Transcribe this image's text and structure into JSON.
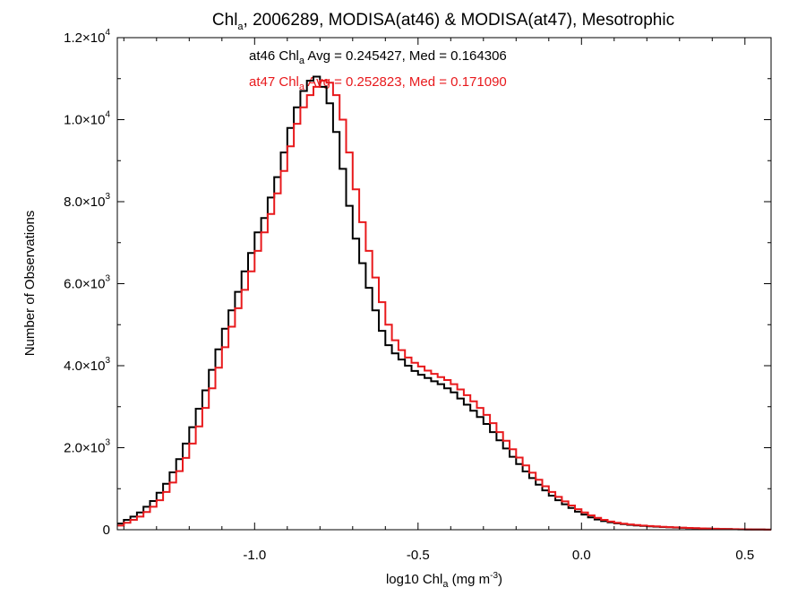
{
  "chart_data": {
    "type": "histogram-step",
    "title": {
      "prefix": "Chl",
      "sub": "a",
      "suffix": ", 2006289, MODISA(at46) & MODISA(at47), Mesotrophic"
    },
    "xlabel": {
      "prefix": "log10 Chl",
      "sub": "a",
      "middle": " (mg m",
      "sup": "-3",
      "suffix": ")"
    },
    "ylabel": "Number of Observations",
    "xlim": [
      -1.42,
      0.58
    ],
    "ylim": [
      0,
      12000
    ],
    "x_ticks": [
      {
        "value": -1.0,
        "label": "-1.0"
      },
      {
        "value": -0.5,
        "label": "-0.5"
      },
      {
        "value": 0.0,
        "label": "0.0"
      },
      {
        "value": 0.5,
        "label": "0.5"
      }
    ],
    "y_ticks": [
      {
        "value": 0,
        "mant": "0",
        "exp": ""
      },
      {
        "value": 2000,
        "mant": "2.0×10",
        "exp": "3"
      },
      {
        "value": 4000,
        "mant": "4.0×10",
        "exp": "3"
      },
      {
        "value": 6000,
        "mant": "6.0×10",
        "exp": "3"
      },
      {
        "value": 8000,
        "mant": "8.0×10",
        "exp": "3"
      },
      {
        "value": 10000,
        "mant": "1.0×10",
        "exp": "4"
      },
      {
        "value": 12000,
        "mant": "1.2×10",
        "exp": "4"
      }
    ],
    "annotations": [
      {
        "color": "#000000",
        "name": "at46",
        "prefix": "at46 Chl",
        "sub": "a",
        "suffix": " Avg = 0.245427, Med = 0.164306"
      },
      {
        "color": "#e8191c",
        "name": "at47",
        "prefix": "at47 Chl",
        "sub": "a",
        "suffix": " Avg = 0.252823, Med = 0.171090"
      }
    ],
    "series": [
      {
        "name": "at46",
        "color": "#000000",
        "points": [
          [
            -1.42,
            150
          ],
          [
            -1.4,
            240
          ],
          [
            -1.38,
            320
          ],
          [
            -1.36,
            420
          ],
          [
            -1.34,
            560
          ],
          [
            -1.32,
            700
          ],
          [
            -1.3,
            900
          ],
          [
            -1.28,
            1120
          ],
          [
            -1.26,
            1400
          ],
          [
            -1.24,
            1720
          ],
          [
            -1.22,
            2100
          ],
          [
            -1.2,
            2500
          ],
          [
            -1.18,
            2950
          ],
          [
            -1.16,
            3400
          ],
          [
            -1.14,
            3900
          ],
          [
            -1.12,
            4400
          ],
          [
            -1.1,
            4900
          ],
          [
            -1.08,
            5350
          ],
          [
            -1.06,
            5800
          ],
          [
            -1.04,
            6300
          ],
          [
            -1.02,
            6750
          ],
          [
            -1.0,
            7250
          ],
          [
            -0.98,
            7600
          ],
          [
            -0.96,
            8100
          ],
          [
            -0.94,
            8600
          ],
          [
            -0.92,
            9200
          ],
          [
            -0.9,
            9800
          ],
          [
            -0.88,
            10300
          ],
          [
            -0.86,
            10700
          ],
          [
            -0.84,
            10950
          ],
          [
            -0.82,
            11050
          ],
          [
            -0.8,
            10800
          ],
          [
            -0.78,
            10400
          ],
          [
            -0.76,
            9700
          ],
          [
            -0.74,
            8800
          ],
          [
            -0.72,
            7900
          ],
          [
            -0.7,
            7100
          ],
          [
            -0.68,
            6500
          ],
          [
            -0.66,
            5900
          ],
          [
            -0.64,
            5350
          ],
          [
            -0.62,
            4850
          ],
          [
            -0.6,
            4500
          ],
          [
            -0.58,
            4300
          ],
          [
            -0.56,
            4150
          ],
          [
            -0.54,
            4000
          ],
          [
            -0.52,
            3870
          ],
          [
            -0.5,
            3780
          ],
          [
            -0.48,
            3700
          ],
          [
            -0.46,
            3620
          ],
          [
            -0.44,
            3550
          ],
          [
            -0.42,
            3450
          ],
          [
            -0.4,
            3350
          ],
          [
            -0.38,
            3200
          ],
          [
            -0.36,
            3050
          ],
          [
            -0.34,
            2900
          ],
          [
            -0.32,
            2750
          ],
          [
            -0.3,
            2580
          ],
          [
            -0.28,
            2380
          ],
          [
            -0.26,
            2180
          ],
          [
            -0.24,
            1980
          ],
          [
            -0.22,
            1780
          ],
          [
            -0.2,
            1600
          ],
          [
            -0.18,
            1420
          ],
          [
            -0.16,
            1260
          ],
          [
            -0.14,
            1100
          ],
          [
            -0.12,
            960
          ],
          [
            -0.1,
            830
          ],
          [
            -0.08,
            720
          ],
          [
            -0.06,
            620
          ],
          [
            -0.04,
            530
          ],
          [
            -0.02,
            440
          ],
          [
            0.0,
            370
          ],
          [
            0.02,
            300
          ],
          [
            0.04,
            250
          ],
          [
            0.06,
            210
          ],
          [
            0.08,
            180
          ],
          [
            0.1,
            155
          ],
          [
            0.12,
            135
          ],
          [
            0.14,
            118
          ],
          [
            0.16,
            104
          ],
          [
            0.18,
            92
          ],
          [
            0.2,
            82
          ],
          [
            0.22,
            74
          ],
          [
            0.24,
            66
          ],
          [
            0.26,
            58
          ],
          [
            0.28,
            52
          ],
          [
            0.3,
            46
          ],
          [
            0.32,
            40
          ],
          [
            0.34,
            35
          ],
          [
            0.36,
            30
          ],
          [
            0.38,
            26
          ],
          [
            0.4,
            22
          ],
          [
            0.42,
            18
          ],
          [
            0.44,
            15
          ],
          [
            0.46,
            12
          ],
          [
            0.48,
            9
          ],
          [
            0.5,
            7
          ],
          [
            0.52,
            5
          ],
          [
            0.54,
            4
          ],
          [
            0.56,
            3
          ]
        ]
      },
      {
        "name": "at47",
        "color": "#e8191c",
        "points": [
          [
            -1.42,
            100
          ],
          [
            -1.4,
            170
          ],
          [
            -1.38,
            240
          ],
          [
            -1.36,
            320
          ],
          [
            -1.34,
            430
          ],
          [
            -1.32,
            560
          ],
          [
            -1.3,
            720
          ],
          [
            -1.28,
            920
          ],
          [
            -1.26,
            1150
          ],
          [
            -1.24,
            1430
          ],
          [
            -1.22,
            1750
          ],
          [
            -1.2,
            2100
          ],
          [
            -1.18,
            2520
          ],
          [
            -1.16,
            2970
          ],
          [
            -1.14,
            3450
          ],
          [
            -1.12,
            3950
          ],
          [
            -1.1,
            4450
          ],
          [
            -1.08,
            4950
          ],
          [
            -1.06,
            5400
          ],
          [
            -1.04,
            5850
          ],
          [
            -1.02,
            6300
          ],
          [
            -1.0,
            6800
          ],
          [
            -0.98,
            7250
          ],
          [
            -0.96,
            7700
          ],
          [
            -0.94,
            8200
          ],
          [
            -0.92,
            8750
          ],
          [
            -0.9,
            9350
          ],
          [
            -0.88,
            9900
          ],
          [
            -0.86,
            10300
          ],
          [
            -0.84,
            10600
          ],
          [
            -0.82,
            10800
          ],
          [
            -0.8,
            10950
          ],
          [
            -0.78,
            10900
          ],
          [
            -0.76,
            10600
          ],
          [
            -0.74,
            10000
          ],
          [
            -0.72,
            9200
          ],
          [
            -0.7,
            8300
          ],
          [
            -0.68,
            7500
          ],
          [
            -0.66,
            6800
          ],
          [
            -0.64,
            6150
          ],
          [
            -0.62,
            5550
          ],
          [
            -0.6,
            5000
          ],
          [
            -0.58,
            4620
          ],
          [
            -0.56,
            4380
          ],
          [
            -0.54,
            4200
          ],
          [
            -0.52,
            4070
          ],
          [
            -0.5,
            3980
          ],
          [
            -0.48,
            3880
          ],
          [
            -0.46,
            3800
          ],
          [
            -0.44,
            3720
          ],
          [
            -0.42,
            3650
          ],
          [
            -0.4,
            3550
          ],
          [
            -0.38,
            3420
          ],
          [
            -0.36,
            3280
          ],
          [
            -0.34,
            3130
          ],
          [
            -0.32,
            2970
          ],
          [
            -0.3,
            2800
          ],
          [
            -0.28,
            2600
          ],
          [
            -0.26,
            2380
          ],
          [
            -0.24,
            2170
          ],
          [
            -0.22,
            1960
          ],
          [
            -0.2,
            1760
          ],
          [
            -0.18,
            1570
          ],
          [
            -0.16,
            1390
          ],
          [
            -0.14,
            1220
          ],
          [
            -0.12,
            1060
          ],
          [
            -0.1,
            920
          ],
          [
            -0.08,
            800
          ],
          [
            -0.06,
            690
          ],
          [
            -0.04,
            590
          ],
          [
            -0.02,
            500
          ],
          [
            0.0,
            420
          ],
          [
            0.02,
            350
          ],
          [
            0.04,
            290
          ],
          [
            0.06,
            240
          ],
          [
            0.08,
            200
          ],
          [
            0.1,
            170
          ],
          [
            0.12,
            148
          ],
          [
            0.14,
            130
          ],
          [
            0.16,
            114
          ],
          [
            0.18,
            100
          ],
          [
            0.2,
            89
          ],
          [
            0.22,
            80
          ],
          [
            0.24,
            72
          ],
          [
            0.26,
            64
          ],
          [
            0.28,
            57
          ],
          [
            0.3,
            50
          ],
          [
            0.32,
            44
          ],
          [
            0.34,
            38
          ],
          [
            0.36,
            33
          ],
          [
            0.38,
            28
          ],
          [
            0.4,
            24
          ],
          [
            0.42,
            20
          ],
          [
            0.44,
            16
          ],
          [
            0.46,
            13
          ],
          [
            0.48,
            10
          ],
          [
            0.5,
            8
          ],
          [
            0.52,
            6
          ],
          [
            0.54,
            4
          ],
          [
            0.56,
            3
          ]
        ]
      }
    ]
  }
}
